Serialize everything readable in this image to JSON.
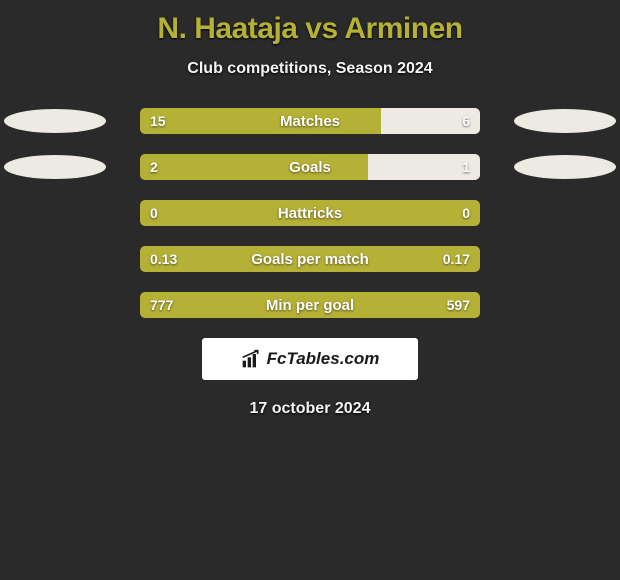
{
  "title": "N. Haataja vs Arminen",
  "subtitle": "Club competitions, Season 2024",
  "date": "17 october 2024",
  "logo_text": "FcTables.com",
  "colors": {
    "left_fill": "#b5b036",
    "right_fill": "#eceae3",
    "background": "#2a2a2a",
    "title_color": "#b5b036",
    "text_color": "#f5f5f5"
  },
  "fonts": {
    "title_size": 30,
    "subtitle_size": 16,
    "label_size": 15,
    "value_size": 14
  },
  "rows": [
    {
      "label": "Matches",
      "left_value": "15",
      "right_value": "6",
      "left_pct": 71,
      "right_pct": 29,
      "show_oval": true
    },
    {
      "label": "Goals",
      "left_value": "2",
      "right_value": "1",
      "left_pct": 67,
      "right_pct": 33,
      "show_oval": true
    },
    {
      "label": "Hattricks",
      "left_value": "0",
      "right_value": "0",
      "left_pct": 100,
      "right_pct": 0,
      "show_oval": false
    },
    {
      "label": "Goals per match",
      "left_value": "0.13",
      "right_value": "0.17",
      "left_pct": 100,
      "right_pct": 0,
      "show_oval": false
    },
    {
      "label": "Min per goal",
      "left_value": "777",
      "right_value": "597",
      "left_pct": 100,
      "right_pct": 0,
      "show_oval": false
    }
  ]
}
